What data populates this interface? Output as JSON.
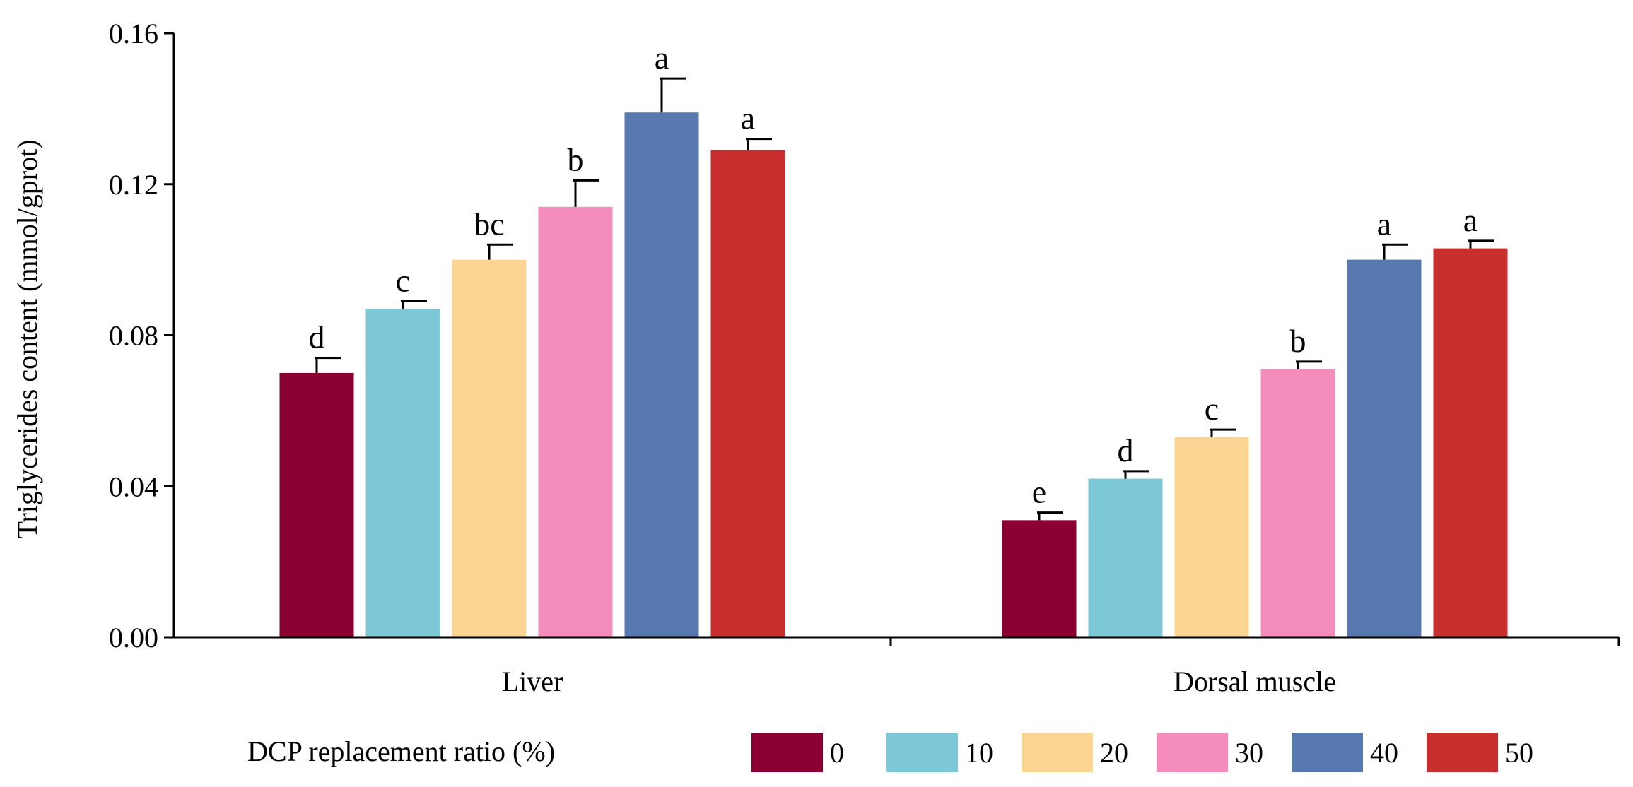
{
  "chart_data": {
    "type": "bar",
    "title": "",
    "xlabel": "",
    "ylabel": "Triglycerides content (mmol/gprot)",
    "ylim": [
      0,
      0.16
    ],
    "yticks": [
      "0.00",
      "0.04",
      "0.08",
      "0.12",
      "0.16"
    ],
    "ytick_values": [
      0,
      0.04,
      0.08,
      0.12,
      0.16
    ],
    "categories": [
      "Liver",
      "Dorsal muscle"
    ],
    "legend_title": "DCP replacement ratio (%)",
    "legend_position": "bottom",
    "series": [
      {
        "name": "0",
        "color": "#8B0033",
        "values": [
          0.07,
          0.031
        ],
        "errors": [
          0.004,
          0.002
        ],
        "labels": [
          "d",
          "e"
        ]
      },
      {
        "name": "10",
        "color": "#7CC8D6",
        "values": [
          0.087,
          0.042
        ],
        "errors": [
          0.002,
          0.002
        ],
        "labels": [
          "c",
          "d"
        ]
      },
      {
        "name": "20",
        "color": "#FDD592",
        "values": [
          0.1,
          0.053
        ],
        "errors": [
          0.004,
          0.002
        ],
        "labels": [
          "bc",
          "c"
        ]
      },
      {
        "name": "30",
        "color": "#F48CBC",
        "values": [
          0.114,
          0.071
        ],
        "errors": [
          0.007,
          0.002
        ],
        "labels": [
          "b",
          "b"
        ]
      },
      {
        "name": "40",
        "color": "#5878B0",
        "values": [
          0.139,
          0.1
        ],
        "errors": [
          0.009,
          0.004
        ],
        "labels": [
          "a",
          "a"
        ]
      },
      {
        "name": "50",
        "color": "#C82E2E",
        "values": [
          0.129,
          0.103
        ],
        "errors": [
          0.003,
          0.002
        ],
        "labels": [
          "a",
          "a"
        ]
      }
    ]
  }
}
